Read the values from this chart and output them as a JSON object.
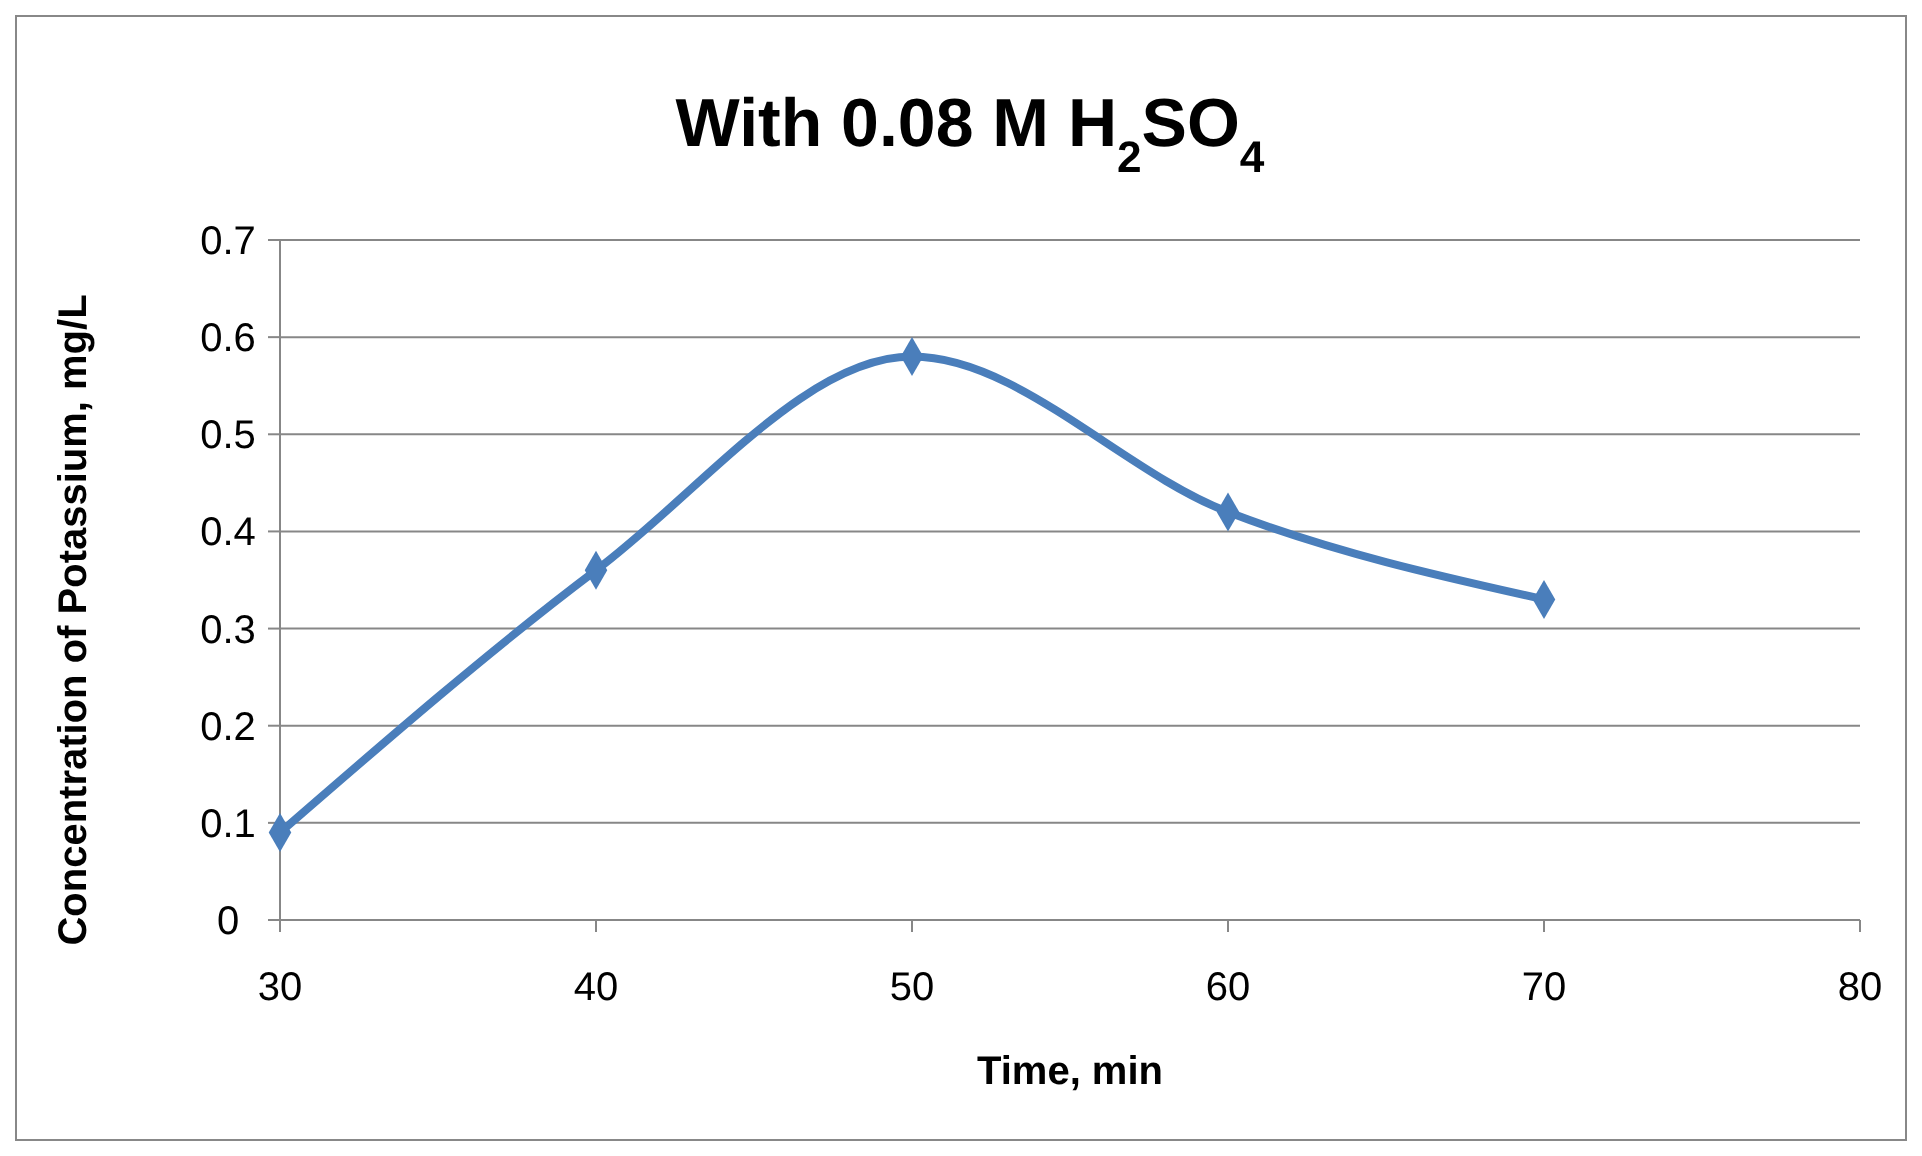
{
  "chart_data": {
    "type": "line",
    "title": "With 0.08 M H$_{2}$SO$_{4}$",
    "xlabel": "Time, min",
    "ylabel": "Concentration of Potassium, mg/L",
    "x": [
      30,
      40,
      50,
      60,
      70
    ],
    "series": [
      {
        "color": "#4a7ebb",
        "values": [
          0.09,
          0.36,
          0.58,
          0.42,
          0.33
        ]
      }
    ],
    "xlim": [
      30,
      80
    ],
    "xticks": [
      30,
      40,
      50,
      60,
      70,
      80
    ],
    "ylim": [
      0,
      0.7
    ],
    "yticks": [
      0,
      0.1,
      0.2,
      0.3,
      0.4,
      0.5,
      0.6,
      0.7
    ],
    "grid": "y",
    "marker": "diamond",
    "line_style": "solid"
  }
}
